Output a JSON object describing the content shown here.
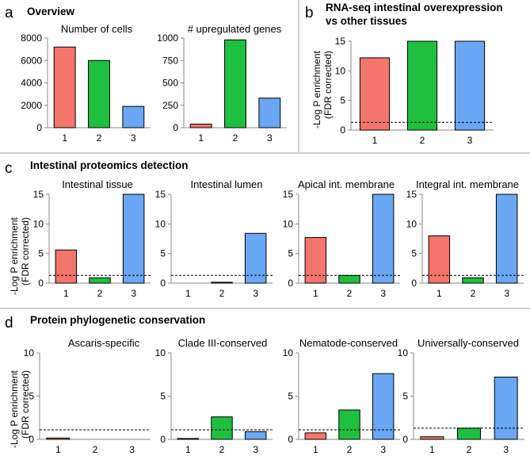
{
  "colors": {
    "group1": "#f4756b",
    "group2": "#1fbf3f",
    "group3": "#6aa7f5",
    "axis": "#888888",
    "border": "#000000",
    "threshold": "#000000"
  },
  "shared": {
    "y_label_line1": "-Log P enrichment",
    "y_label_line2": "(FDR corrected)",
    "categories": [
      "1",
      "2",
      "3"
    ],
    "threshold_value": 1.3
  },
  "panels": [
    {
      "letter": "a",
      "title": "Overview"
    },
    {
      "letter": "b",
      "title_lines": [
        "RNA-seq intestinal overexpression",
        "vs other tissues"
      ]
    },
    {
      "letter": "c",
      "title": "Intestinal proteomics detection"
    },
    {
      "letter": "d",
      "title": "Protein phylogenetic conservation"
    }
  ],
  "chart_data": [
    {
      "id": "a1",
      "panel": "a",
      "type": "bar",
      "title": "Number  of cells",
      "categories": [
        "1",
        "2",
        "3"
      ],
      "values": [
        7200,
        6000,
        1900
      ],
      "ylim": [
        0,
        8000
      ],
      "yticks": [
        "0",
        "2000",
        "4000",
        "6000",
        "8000"
      ],
      "ytick_values": [
        0,
        2000,
        4000,
        6000,
        8000
      ],
      "ylabel": "",
      "threshold": null
    },
    {
      "id": "a2",
      "panel": "a",
      "type": "bar",
      "title": "# upregulated  genes",
      "categories": [
        "1",
        "2",
        "3"
      ],
      "values": [
        40,
        980,
        330
      ],
      "ylim": [
        0,
        1000
      ],
      "yticks": [
        "0",
        "250",
        "500",
        "750",
        "1000"
      ],
      "ytick_values": [
        0,
        250,
        500,
        750,
        1000
      ],
      "ylabel": "",
      "threshold": null
    },
    {
      "id": "b1",
      "panel": "b",
      "type": "bar",
      "title": "",
      "categories": [
        "1",
        "2",
        "3"
      ],
      "values": [
        12.2,
        15,
        15
      ],
      "ylim": [
        0,
        15
      ],
      "yticks": [
        "0",
        "5",
        "10",
        "15"
      ],
      "ytick_values": [
        0,
        5,
        10,
        15
      ],
      "ylabel": "-Log P enrichment (FDR corrected)",
      "threshold": 1.3
    },
    {
      "id": "c1",
      "panel": "c",
      "type": "bar",
      "title": "Intestinal tissue",
      "categories": [
        "1",
        "2",
        "3"
      ],
      "values": [
        5.6,
        0.9,
        15
      ],
      "ylim": [
        0,
        15
      ],
      "yticks": [
        "0",
        "5",
        "10",
        "15"
      ],
      "ytick_values": [
        0,
        5,
        10,
        15
      ],
      "ylabel": "-Log P enrichment (FDR corrected)",
      "threshold": 1.3
    },
    {
      "id": "c2",
      "panel": "c",
      "type": "bar",
      "title": "Intestinal lumen",
      "categories": [
        "1",
        "2",
        "3"
      ],
      "values": [
        0,
        0.15,
        8.4
      ],
      "ylim": [
        0,
        15
      ],
      "yticks": [
        "0",
        "5",
        "10",
        "15"
      ],
      "ytick_values": [
        0,
        5,
        10,
        15
      ],
      "ylabel": "",
      "threshold": 1.3
    },
    {
      "id": "c3",
      "panel": "c",
      "type": "bar",
      "title": "Apical int. membrane",
      "categories": [
        "1",
        "2",
        "3"
      ],
      "values": [
        7.7,
        1.3,
        15
      ],
      "ylim": [
        0,
        15
      ],
      "yticks": [
        "0",
        "5",
        "10",
        "15"
      ],
      "ytick_values": [
        0,
        5,
        10,
        15
      ],
      "ylabel": "",
      "threshold": 1.3
    },
    {
      "id": "c4",
      "panel": "c",
      "type": "bar",
      "title": "Integral int. membrane",
      "categories": [
        "1",
        "2",
        "3"
      ],
      "values": [
        8.0,
        0.9,
        15
      ],
      "ylim": [
        0,
        15
      ],
      "yticks": [
        "0",
        "5",
        "10",
        "15"
      ],
      "ytick_values": [
        0,
        5,
        10,
        15
      ],
      "ylabel": "",
      "threshold": 1.3
    },
    {
      "id": "d1",
      "panel": "d",
      "type": "bar",
      "title": "Ascaris-specific",
      "categories": [
        "1",
        "2",
        "3"
      ],
      "values": [
        0.15,
        0,
        0
      ],
      "ylim": [
        0,
        10
      ],
      "yticks": [
        "0",
        "5",
        "10"
      ],
      "ytick_values": [
        0,
        5,
        10
      ],
      "ylabel": "-Log P enrichment (FDR corrected)",
      "threshold": 1.1
    },
    {
      "id": "d2",
      "panel": "d",
      "type": "bar",
      "title": "Clade III-conserved",
      "categories": [
        "1",
        "2",
        "3"
      ],
      "values": [
        0.1,
        2.6,
        0.9
      ],
      "ylim": [
        0,
        10
      ],
      "yticks": [
        "0",
        "5",
        "10"
      ],
      "ytick_values": [
        0,
        5,
        10
      ],
      "ylabel": "",
      "threshold": 1.1
    },
    {
      "id": "d3",
      "panel": "d",
      "type": "bar",
      "title": "Nematode-conserved",
      "categories": [
        "1",
        "2",
        "3"
      ],
      "values": [
        0.75,
        3.4,
        7.6
      ],
      "ylim": [
        0,
        10
      ],
      "yticks": [
        "0",
        "5",
        "10"
      ],
      "ytick_values": [
        0,
        5,
        10
      ],
      "ylabel": "",
      "threshold": 1.1
    },
    {
      "id": "d4",
      "panel": "d",
      "type": "bar",
      "title": "Universally-conserved",
      "categories": [
        "1",
        "2",
        "3"
      ],
      "values": [
        0.3,
        1.3,
        7.2
      ],
      "ylim": [
        0,
        10
      ],
      "yticks": [
        "0",
        "5",
        "10"
      ],
      "ytick_values": [
        0,
        5,
        10
      ],
      "ylabel": "",
      "threshold": 1.3
    }
  ]
}
